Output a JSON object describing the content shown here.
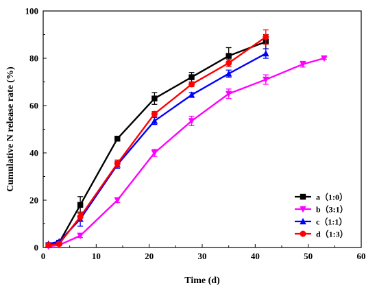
{
  "chart_data": {
    "type": "line",
    "xlabel": "Time (d)",
    "ylabel": "Cumulative N release rate (%)",
    "xlim": [
      0,
      60
    ],
    "ylim": [
      0,
      100
    ],
    "xticks": [
      0,
      10,
      20,
      30,
      40,
      50,
      60
    ],
    "yticks": [
      0,
      20,
      40,
      60,
      80,
      100
    ],
    "grid": false,
    "legend_position": "bottom-right",
    "series": [
      {
        "name": "a（1:0）",
        "color": "#000000",
        "marker": "square",
        "x": [
          1,
          3,
          7,
          14,
          21,
          28,
          35,
          42
        ],
        "y": [
          1,
          2,
          18,
          46,
          63,
          72,
          81,
          87
        ],
        "err": [
          0.5,
          0.5,
          3.5,
          1,
          2.5,
          2,
          3.5,
          3
        ]
      },
      {
        "name": "b（3:1）",
        "color": "#ff00ff",
        "marker": "triangle-down",
        "x": [
          1,
          3,
          7,
          14,
          21,
          28,
          35,
          42,
          49,
          53
        ],
        "y": [
          0.5,
          1,
          5,
          20,
          40,
          53.5,
          65,
          71,
          77.5,
          80
        ],
        "err": [
          0.3,
          0.3,
          0.8,
          1,
          1.5,
          2,
          2,
          2,
          1.2,
          0.5
        ]
      },
      {
        "name": "c（1:1）",
        "color": "#0000ff",
        "marker": "triangle-up",
        "x": [
          1,
          3,
          7,
          14,
          21,
          28,
          35,
          42
        ],
        "y": [
          1.5,
          2.5,
          12,
          35,
          53.5,
          64.5,
          73.5,
          82
        ],
        "err": [
          0.5,
          0.5,
          3,
          1.5,
          1.5,
          1,
          1.5,
          2
        ]
      },
      {
        "name": "d（1:3）",
        "color": "#ff0000",
        "marker": "circle",
        "x": [
          1,
          3,
          7,
          14,
          21,
          28,
          35,
          42
        ],
        "y": [
          1,
          1.5,
          13,
          35.5,
          56.5,
          69,
          78,
          89
        ],
        "err": [
          0.5,
          0.5,
          2,
          1.5,
          1,
          1,
          1.5,
          3
        ]
      }
    ]
  }
}
